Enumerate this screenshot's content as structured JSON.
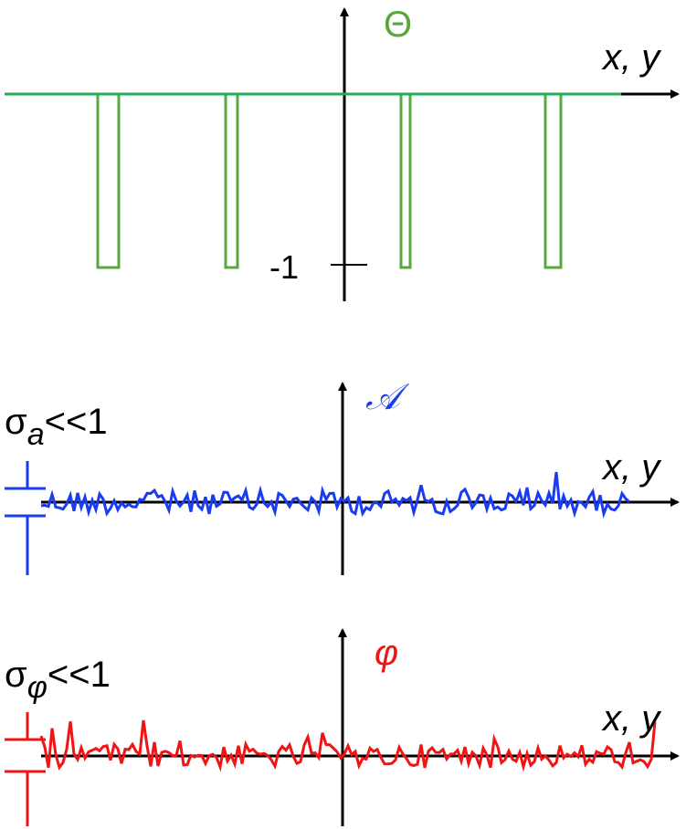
{
  "panels": [
    {
      "axis_label": "Θ",
      "x_label": "x, y",
      "tick_label": "-1"
    },
    {
      "axis_label": "𝒜",
      "x_label": "x, y",
      "sigma": "σ",
      "subscript": "a",
      "condition": "<<1"
    },
    {
      "axis_label": "φ",
      "x_label": "x, y",
      "sigma": "σ",
      "subscript": "φ",
      "condition": "<<1"
    }
  ]
}
